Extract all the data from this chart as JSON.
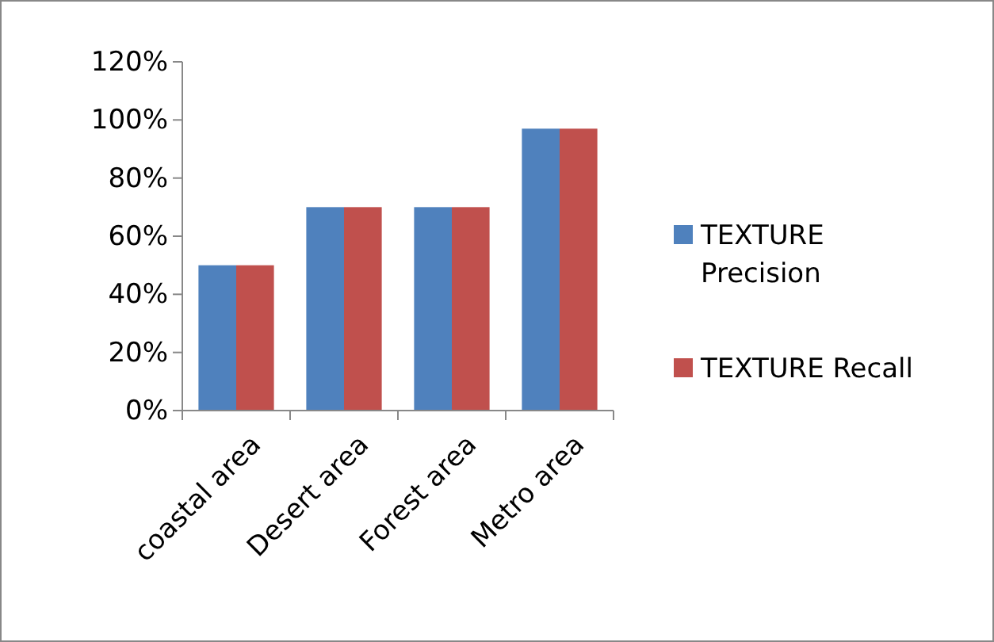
{
  "chart_data": {
    "type": "bar",
    "categories": [
      "coastal area",
      "Desert area",
      "Forest area",
      "Metro area"
    ],
    "series": [
      {
        "name": "TEXTURE Precision",
        "color": "#4f81bd",
        "values": [
          50,
          70,
          70,
          97
        ]
      },
      {
        "name": "TEXTURE Recall",
        "color": "#c0504d",
        "values": [
          50,
          70,
          70,
          97
        ]
      }
    ],
    "ylim": [
      0,
      120
    ],
    "yticks": [
      {
        "value": 0,
        "label": "0%"
      },
      {
        "value": 20,
        "label": "20%"
      },
      {
        "value": 40,
        "label": "40%"
      },
      {
        "value": 60,
        "label": "60%"
      },
      {
        "value": 80,
        "label": "80%"
      },
      {
        "value": 100,
        "label": "100%"
      },
      {
        "value": 120,
        "label": "120%"
      }
    ],
    "grid": false,
    "legend": "right"
  }
}
